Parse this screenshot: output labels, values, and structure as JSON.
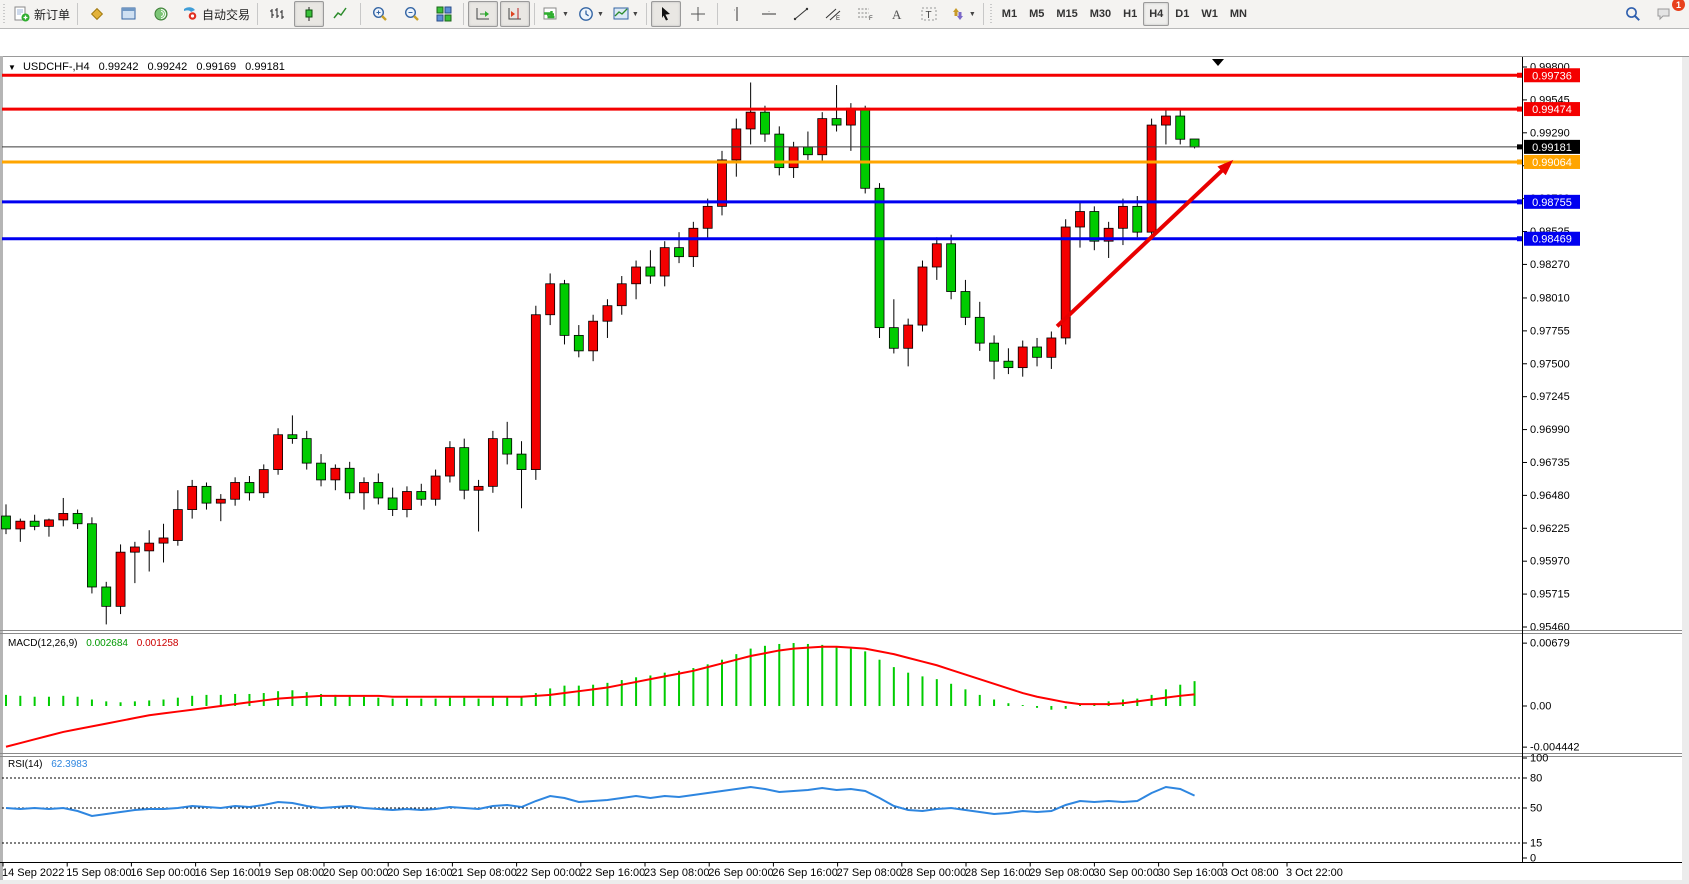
{
  "toolbar": {
    "groups": [
      {
        "items": [
          {
            "name": "new-order",
            "label": "新订单"
          }
        ]
      },
      {
        "items": [
          {
            "name": "market-watch"
          },
          {
            "name": "data-window"
          },
          {
            "name": "navigator"
          },
          {
            "name": "auto-trading",
            "label": "自动交易"
          }
        ]
      },
      {
        "items": [
          {
            "name": "bar-chart"
          },
          {
            "name": "candle-chart",
            "active": true
          },
          {
            "name": "line-chart"
          }
        ]
      },
      {
        "items": [
          {
            "name": "zoom-in"
          },
          {
            "name": "zoom-out"
          },
          {
            "name": "tile-windows"
          }
        ]
      },
      {
        "items": [
          {
            "name": "auto-scroll",
            "active": true
          },
          {
            "name": "chart-shift",
            "active": true
          }
        ]
      },
      {
        "items": [
          {
            "name": "indicators",
            "dropdown": true
          },
          {
            "name": "periods",
            "dropdown": true
          },
          {
            "name": "templates",
            "dropdown": true
          }
        ]
      },
      {
        "items": [
          {
            "name": "cursor",
            "active": true
          },
          {
            "name": "crosshair"
          }
        ]
      },
      {
        "items": [
          {
            "name": "vertical-line"
          },
          {
            "name": "horizontal-line"
          },
          {
            "name": "trend-line"
          },
          {
            "name": "equidistant-channel"
          },
          {
            "name": "fibonacci"
          },
          {
            "name": "text"
          },
          {
            "name": "text-label"
          },
          {
            "name": "arrows",
            "dropdown": true
          }
        ]
      }
    ],
    "timeframes": [
      {
        "label": "M1"
      },
      {
        "label": "M5"
      },
      {
        "label": "M15"
      },
      {
        "label": "M30"
      },
      {
        "label": "H1"
      },
      {
        "label": "H4",
        "active": true
      },
      {
        "label": "D1"
      },
      {
        "label": "W1"
      },
      {
        "label": "MN"
      }
    ],
    "notification_count": "1"
  },
  "chart": {
    "title": {
      "symbol_period": "USDCHF-,H4",
      "open": "0.99242",
      "high": "0.99242",
      "low": "0.99169",
      "close": "0.99181"
    },
    "price_axis_ticks": [
      "0.99800",
      "0.99545",
      "0.99290",
      "0.99035",
      "0.98780",
      "0.98525",
      "0.98270",
      "0.98010",
      "0.97755",
      "0.97500",
      "0.97245",
      "0.96990",
      "0.96735",
      "0.96480",
      "0.96225",
      "0.95970",
      "0.95715",
      "0.95460"
    ],
    "current_price": {
      "value": "0.99181",
      "line_color": "#3a3a3a",
      "badge_color": "#000000"
    },
    "hlines": [
      {
        "price": 0.99736,
        "label": "0.99736",
        "color": "#f40000",
        "width": 3
      },
      {
        "price": 0.99474,
        "label": "0.99474",
        "color": "#f40000",
        "width": 3
      },
      {
        "price": 0.99064,
        "label": "0.99064",
        "color": "#ffa500",
        "width": 3
      },
      {
        "price": 0.98755,
        "label": "0.98755",
        "color": "#0000f0",
        "width": 3
      },
      {
        "price": 0.98469,
        "label": "0.98469",
        "color": "#0000f0",
        "width": 3
      }
    ],
    "colors": {
      "bull": "#f40000",
      "bear": "#00cc00",
      "wick": "#000000",
      "macd_hist": "#00cc00",
      "macd_signal": "#ff0000",
      "rsi_line": "#2e86e0"
    }
  },
  "chart_data": {
    "type": "candlestick",
    "symbol": "USDCHF",
    "timeframe": "H4",
    "note": "red body = bullish, green body = bearish (Chinese color convention)",
    "candles": [
      [
        0.9632,
        0.9641,
        0.9618,
        0.9622
      ],
      [
        0.9622,
        0.963,
        0.9612,
        0.9628
      ],
      [
        0.9628,
        0.9633,
        0.9621,
        0.9624
      ],
      [
        0.9624,
        0.963,
        0.9616,
        0.9629
      ],
      [
        0.9629,
        0.9646,
        0.9624,
        0.9634
      ],
      [
        0.9634,
        0.9637,
        0.9622,
        0.9626
      ],
      [
        0.9626,
        0.9631,
        0.9572,
        0.9577
      ],
      [
        0.9577,
        0.9581,
        0.9548,
        0.9562
      ],
      [
        0.9562,
        0.961,
        0.9556,
        0.9604
      ],
      [
        0.9604,
        0.9612,
        0.958,
        0.9608
      ],
      [
        0.9605,
        0.9621,
        0.9589,
        0.9611
      ],
      [
        0.9611,
        0.9626,
        0.9596,
        0.9615
      ],
      [
        0.9613,
        0.9652,
        0.9609,
        0.9637
      ],
      [
        0.9637,
        0.966,
        0.963,
        0.9655
      ],
      [
        0.9655,
        0.9658,
        0.9637,
        0.9642
      ],
      [
        0.9642,
        0.9649,
        0.9628,
        0.9645
      ],
      [
        0.9645,
        0.9662,
        0.964,
        0.9658
      ],
      [
        0.9658,
        0.9663,
        0.9644,
        0.965
      ],
      [
        0.965,
        0.9672,
        0.9646,
        0.9668
      ],
      [
        0.9668,
        0.97,
        0.9664,
        0.9695
      ],
      [
        0.9695,
        0.971,
        0.9688,
        0.9692
      ],
      [
        0.9692,
        0.9698,
        0.9668,
        0.9673
      ],
      [
        0.9673,
        0.968,
        0.9655,
        0.966
      ],
      [
        0.966,
        0.9672,
        0.9652,
        0.9669
      ],
      [
        0.9669,
        0.9674,
        0.9645,
        0.965
      ],
      [
        0.965,
        0.9662,
        0.9637,
        0.9658
      ],
      [
        0.9658,
        0.9665,
        0.9641,
        0.9646
      ],
      [
        0.9646,
        0.9654,
        0.9632,
        0.9637
      ],
      [
        0.9637,
        0.9655,
        0.9631,
        0.9651
      ],
      [
        0.9651,
        0.9657,
        0.964,
        0.9645
      ],
      [
        0.9645,
        0.9668,
        0.964,
        0.9663
      ],
      [
        0.9663,
        0.969,
        0.9658,
        0.9685
      ],
      [
        0.9685,
        0.9692,
        0.9645,
        0.9652
      ],
      [
        0.9652,
        0.966,
        0.962,
        0.9655
      ],
      [
        0.9655,
        0.9698,
        0.965,
        0.9692
      ],
      [
        0.9692,
        0.9705,
        0.9672,
        0.968
      ],
      [
        0.968,
        0.969,
        0.9638,
        0.9668
      ],
      [
        0.9668,
        0.9795,
        0.966,
        0.9788
      ],
      [
        0.9788,
        0.982,
        0.978,
        0.9812
      ],
      [
        0.9812,
        0.9815,
        0.9765,
        0.9772
      ],
      [
        0.9772,
        0.978,
        0.9755,
        0.976
      ],
      [
        0.976,
        0.9788,
        0.9752,
        0.9783
      ],
      [
        0.9783,
        0.98,
        0.977,
        0.9795
      ],
      [
        0.9795,
        0.9818,
        0.9788,
        0.9812
      ],
      [
        0.9812,
        0.983,
        0.98,
        0.9825
      ],
      [
        0.9825,
        0.9838,
        0.9812,
        0.9818
      ],
      [
        0.9818,
        0.9845,
        0.981,
        0.984
      ],
      [
        0.984,
        0.9852,
        0.9828,
        0.9833
      ],
      [
        0.9833,
        0.986,
        0.9825,
        0.9855
      ],
      [
        0.9855,
        0.9878,
        0.9846,
        0.9872
      ],
      [
        0.9872,
        0.9915,
        0.9865,
        0.9908
      ],
      [
        0.9908,
        0.994,
        0.9895,
        0.9932
      ],
      [
        0.9932,
        0.9968,
        0.992,
        0.9945
      ],
      [
        0.9945,
        0.995,
        0.9922,
        0.9928
      ],
      [
        0.9928,
        0.9934,
        0.9896,
        0.9902
      ],
      [
        0.9902,
        0.9922,
        0.9894,
        0.9918
      ],
      [
        0.9918,
        0.993,
        0.9908,
        0.9912
      ],
      [
        0.9912,
        0.9945,
        0.9906,
        0.994
      ],
      [
        0.994,
        0.9966,
        0.993,
        0.9935
      ],
      [
        0.9935,
        0.9952,
        0.9915,
        0.9948
      ],
      [
        0.9948,
        0.995,
        0.9882,
        0.9886
      ],
      [
        0.9886,
        0.989,
        0.977,
        0.9778
      ],
      [
        0.9778,
        0.98,
        0.9758,
        0.9762
      ],
      [
        0.9762,
        0.9785,
        0.9748,
        0.978
      ],
      [
        0.978,
        0.983,
        0.9775,
        0.9825
      ],
      [
        0.9825,
        0.9848,
        0.9815,
        0.9843
      ],
      [
        0.9843,
        0.985,
        0.98,
        0.9806
      ],
      [
        0.9806,
        0.9815,
        0.978,
        0.9786
      ],
      [
        0.9786,
        0.9798,
        0.976,
        0.9766
      ],
      [
        0.9766,
        0.9772,
        0.9738,
        0.9752
      ],
      [
        0.9752,
        0.9762,
        0.9742,
        0.9747
      ],
      [
        0.9747,
        0.9768,
        0.974,
        0.9763
      ],
      [
        0.9763,
        0.977,
        0.9748,
        0.9755
      ],
      [
        0.9755,
        0.9775,
        0.9746,
        0.977
      ],
      [
        0.977,
        0.9862,
        0.9765,
        0.9856
      ],
      [
        0.9856,
        0.9875,
        0.984,
        0.9868
      ],
      [
        0.9868,
        0.9872,
        0.9838,
        0.9845
      ],
      [
        0.9845,
        0.986,
        0.9832,
        0.9855
      ],
      [
        0.9855,
        0.9878,
        0.9842,
        0.9872
      ],
      [
        0.9872,
        0.988,
        0.9848,
        0.9852
      ],
      [
        0.9852,
        0.994,
        0.9846,
        0.9935
      ],
      [
        0.9935,
        0.9948,
        0.992,
        0.9942
      ],
      [
        0.9942,
        0.9948,
        0.992,
        0.9924
      ],
      [
        0.99242,
        0.99242,
        0.99169,
        0.99181
      ]
    ],
    "indicators": {
      "macd": {
        "label": "MACD(12,26,9)",
        "value_main": "0.002684",
        "value_signal": "0.001258",
        "axis_labels": [
          "0.00679",
          "0.00",
          "-0.004442"
        ],
        "histogram": [
          0.0012,
          0.0011,
          0.001,
          0.001,
          0.0011,
          0.001,
          0.0007,
          0.0005,
          0.0004,
          0.0005,
          0.0006,
          0.0007,
          0.0009,
          0.0011,
          0.0012,
          0.0012,
          0.0013,
          0.0013,
          0.0014,
          0.0016,
          0.0017,
          0.0015,
          0.0013,
          0.0012,
          0.0011,
          0.001,
          0.0009,
          0.0008,
          0.0008,
          0.0008,
          0.0008,
          0.0009,
          0.0009,
          0.0008,
          0.0009,
          0.001,
          0.001,
          0.0014,
          0.0019,
          0.0022,
          0.0022,
          0.0023,
          0.0025,
          0.0028,
          0.0031,
          0.0033,
          0.0036,
          0.0038,
          0.0041,
          0.0045,
          0.005,
          0.0056,
          0.0062,
          0.0065,
          0.0067,
          0.0068,
          0.0067,
          0.0066,
          0.0064,
          0.0062,
          0.0059,
          0.005,
          0.0042,
          0.0036,
          0.0032,
          0.0029,
          0.0024,
          0.0018,
          0.0012,
          0.0007,
          0.0003,
          0.0001,
          -0.0002,
          -0.0004,
          -0.0003,
          0.0,
          0.0003,
          0.0005,
          0.0007,
          0.0008,
          0.0012,
          0.0018,
          0.0023,
          0.002684
        ],
        "signal": [
          -0.0044,
          -0.004,
          -0.0036,
          -0.0032,
          -0.0028,
          -0.0025,
          -0.0022,
          -0.0019,
          -0.0016,
          -0.0013,
          -0.001,
          -0.0008,
          -0.0006,
          -0.0004,
          -0.0002,
          0.0,
          0.0002,
          0.0004,
          0.0006,
          0.0008,
          0.0009,
          0.001,
          0.0011,
          0.0011,
          0.0011,
          0.0011,
          0.0011,
          0.001,
          0.001,
          0.001,
          0.001,
          0.001,
          0.001,
          0.001,
          0.001,
          0.001,
          0.001,
          0.0011,
          0.0012,
          0.0014,
          0.0016,
          0.0018,
          0.002,
          0.0023,
          0.0026,
          0.0029,
          0.0032,
          0.0035,
          0.0038,
          0.0042,
          0.0046,
          0.005,
          0.0054,
          0.0057,
          0.006,
          0.0062,
          0.0063,
          0.0064,
          0.0064,
          0.0063,
          0.0062,
          0.0059,
          0.0056,
          0.0052,
          0.0048,
          0.0044,
          0.0039,
          0.0034,
          0.0029,
          0.0024,
          0.0019,
          0.0014,
          0.001,
          0.0007,
          0.0004,
          0.0002,
          0.0002,
          0.0002,
          0.0003,
          0.0005,
          0.0007,
          0.0009,
          0.0011,
          0.001258
        ]
      },
      "rsi": {
        "label": "RSI(14)",
        "value": "62.3983",
        "axis_labels": [
          "100",
          "80",
          "50",
          "15",
          "0"
        ],
        "levels": [
          80,
          50,
          15
        ],
        "values": [
          50,
          49,
          50,
          49,
          50,
          47,
          42,
          44,
          46,
          48,
          49,
          49,
          50,
          52,
          51,
          50,
          52,
          51,
          53,
          56,
          55,
          52,
          50,
          51,
          52,
          50,
          49,
          48,
          49,
          48,
          49,
          51,
          50,
          49,
          52,
          53,
          51,
          57,
          62,
          60,
          56,
          57,
          58,
          60,
          62,
          60,
          62,
          61,
          63,
          65,
          67,
          69,
          71,
          69,
          66,
          67,
          68,
          70,
          68,
          69,
          67,
          60,
          52,
          48,
          47,
          49,
          50,
          48,
          46,
          44,
          45,
          47,
          46,
          47,
          53,
          57,
          56,
          57,
          56,
          57,
          65,
          71,
          69,
          62.4
        ]
      }
    },
    "annotations": {
      "trend_arrow": {
        "from_bar": 73.4,
        "from_price": 0.9779,
        "to_bar": 85.7,
        "to_price": 0.9908,
        "color": "#e80000"
      }
    },
    "x_axis_labels": [
      "14 Sep 2022",
      "15 Sep 08:00",
      "16 Sep 00:00",
      "16 Sep 16:00",
      "19 Sep 08:00",
      "20 Sep 00:00",
      "20 Sep 16:00",
      "21 Sep 08:00",
      "22 Sep 00:00",
      "22 Sep 16:00",
      "23 Sep 08:00",
      "26 Sep 00:00",
      "26 Sep 16:00",
      "27 Sep 08:00",
      "28 Sep 00:00",
      "28 Sep 16:00",
      "29 Sep 08:00",
      "30 Sep 00:00",
      "30 Sep 16:00",
      "3 Oct 08:00",
      "3 Oct 22:00"
    ]
  }
}
